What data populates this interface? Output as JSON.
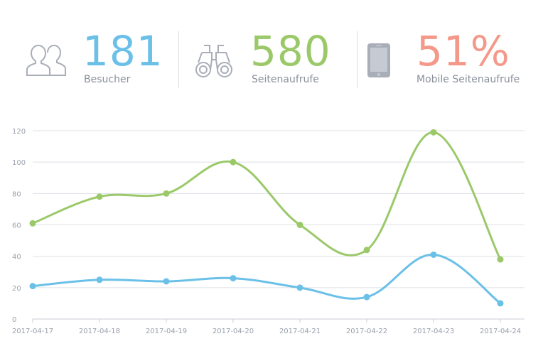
{
  "stats": [
    {
      "value": "181",
      "label": "Besucher",
      "color": "#6bc0e8",
      "icon": "users-icon"
    },
    {
      "value": "580",
      "label": "Seitenaufrufe",
      "color": "#9bc96a",
      "icon": "binoculars-icon"
    },
    {
      "value": "51%",
      "label": "Mobile Seitenaufrufe",
      "color": "#f4998a",
      "icon": "smartphone-icon"
    }
  ],
  "chart_data": {
    "type": "line",
    "categories": [
      "2017-04-17",
      "2017-04-18",
      "2017-04-19",
      "2017-04-20",
      "2017-04-21",
      "2017-04-22",
      "2017-04-23",
      "2017-04-24"
    ],
    "series": [
      {
        "color": "#9bc96a",
        "values": [
          61,
          78,
          80,
          100,
          60,
          44,
          119,
          38
        ]
      },
      {
        "color": "#6bc0e8",
        "values": [
          21,
          25,
          24,
          26,
          20,
          14,
          41,
          10
        ]
      }
    ],
    "yticks": [
      0,
      20,
      40,
      60,
      80,
      100,
      120
    ],
    "ylim": [
      0,
      120
    ],
    "grid": true,
    "title": "",
    "xlabel": "",
    "ylabel": ""
  }
}
